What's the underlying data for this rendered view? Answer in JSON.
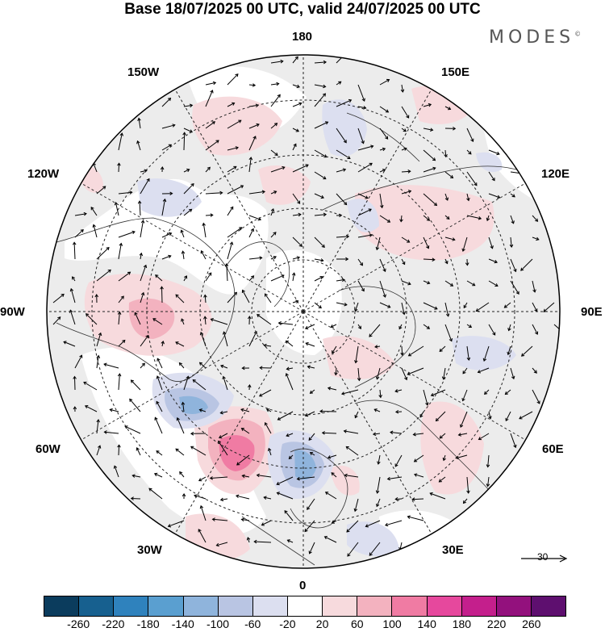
{
  "title": "Base 18/07/2025 00 UTC, valid 24/07/2025 00 UTC",
  "logo": {
    "text": "MODES",
    "mark": "©"
  },
  "meridian_labels": {
    "lon_180": "180",
    "lon_150w": "150W",
    "lon_150e": "150E",
    "lon_120w": "120W",
    "lon_120e": "120E",
    "lon_90w": "90W",
    "lon_90e": "90E",
    "lon_60w": "60W",
    "lon_60e": "60E",
    "lon_30w": "30W",
    "lon_30e": "30E",
    "lon_0": "0"
  },
  "reference_vector": {
    "label": "30"
  },
  "colorbar": {
    "tick_labels": [
      "-260",
      "-220",
      "-180",
      "-140",
      "-100",
      "-60",
      "-20",
      "20",
      "60",
      "100",
      "140",
      "180",
      "220",
      "260"
    ],
    "colors": [
      "#0b3c5d",
      "#17608f",
      "#2f82bd",
      "#5a9fd0",
      "#8fb4dc",
      "#b9c5e3",
      "#dcdff0",
      "#ffffff",
      "#f7dadd",
      "#f3b2bf",
      "#f07ba3",
      "#e6489d",
      "#c41f8c",
      "#93117d",
      "#5e0f6f"
    ]
  }
}
